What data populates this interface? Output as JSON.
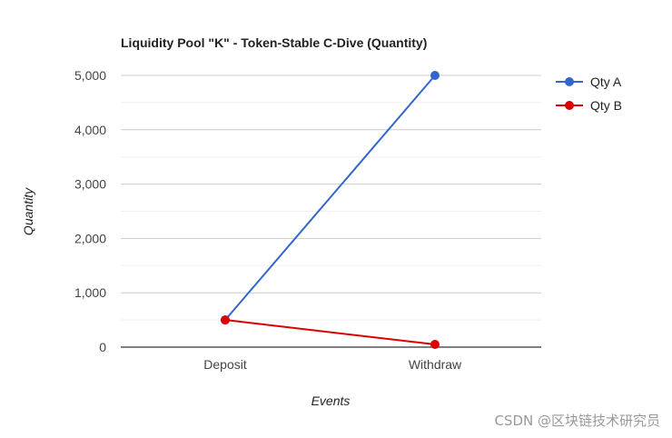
{
  "chart_data": {
    "type": "line",
    "title": "Liquidity Pool \"K\" - Token-Stable C-Dive (Quantity)",
    "xlabel": "Events",
    "ylabel": "Quantity",
    "categories": [
      "Deposit",
      "Withdraw"
    ],
    "series": [
      {
        "name": "Qty A",
        "values": [
          500,
          5000
        ],
        "color": "#3366cc"
      },
      {
        "name": "Qty B",
        "values": [
          500,
          50
        ],
        "color": "#dc0000"
      }
    ],
    "ylim": [
      0,
      5000
    ],
    "yticks": [
      {
        "value": 0,
        "label": "0"
      },
      {
        "value": 1000,
        "label": "1,000"
      },
      {
        "value": 2000,
        "label": "2,000"
      },
      {
        "value": 3000,
        "label": "3,000"
      },
      {
        "value": 4000,
        "label": "4,000"
      },
      {
        "value": 5000,
        "label": "5,000"
      }
    ],
    "grid": true,
    "legend": "right"
  },
  "watermark": "CSDN @区块链技术研究员"
}
